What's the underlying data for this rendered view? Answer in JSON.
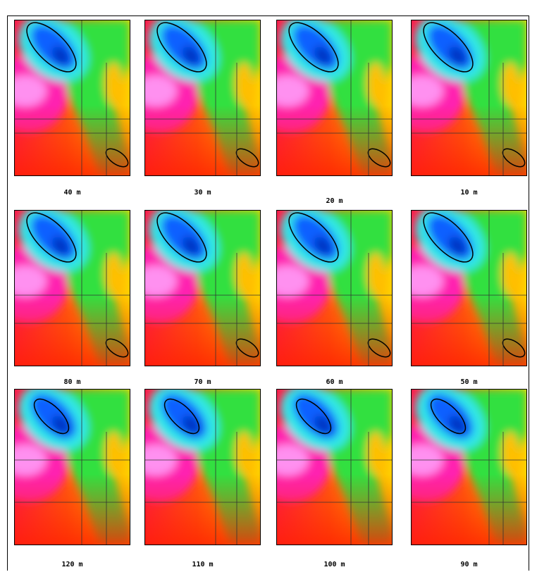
{
  "panels": [
    {
      "label": "40 m"
    },
    {
      "label": "30 m"
    },
    {
      "label": "20 m"
    },
    {
      "label": "10 m"
    },
    {
      "label": "80 m"
    },
    {
      "label": "70 m"
    },
    {
      "label": "60 m"
    },
    {
      "label": "50 m"
    },
    {
      "label": "120 m"
    },
    {
      "label": "110 m"
    },
    {
      "label": "100 m"
    },
    {
      "label": "90 m"
    }
  ]
}
